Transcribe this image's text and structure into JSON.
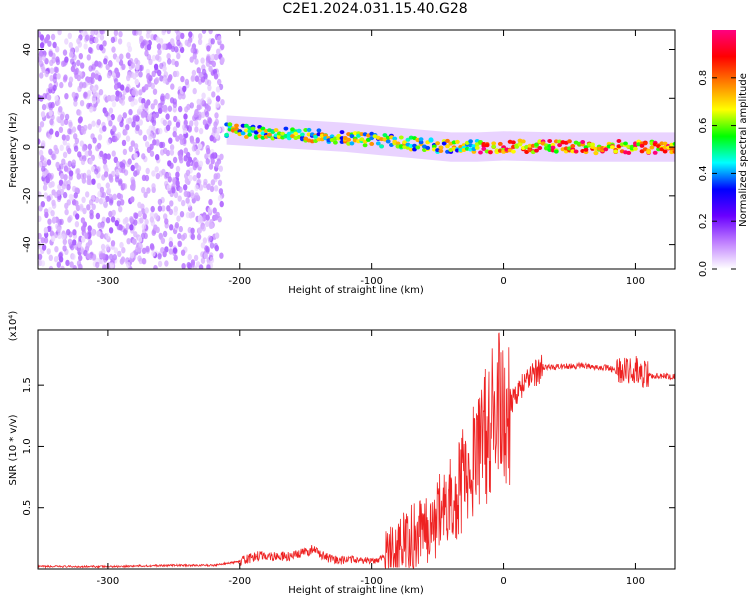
{
  "title": "C2E1.2024.031.15.40.G28",
  "chart_data": [
    {
      "type": "heatmap",
      "xlabel": "Height of straight line (km)",
      "ylabel": "Frequency (Hz)",
      "xlim": [
        -353,
        130
      ],
      "ylim": [
        -50,
        48
      ],
      "x_ticks": [
        -300,
        -200,
        -100,
        0,
        100
      ],
      "x_tick_labels": [
        "-300",
        "-200",
        "-100",
        "0",
        "100"
      ],
      "y_ticks": [
        -40,
        -20,
        0,
        20,
        40
      ],
      "y_tick_labels": [
        "-40",
        "-20",
        "0",
        "20",
        "40"
      ],
      "colorbar": {
        "label": "Normalized spectral amplitude",
        "range": [
          0,
          1
        ],
        "ticks": [
          0.0,
          0.2,
          0.4,
          0.6,
          0.8
        ],
        "tick_labels": [
          "0.0",
          "0.2",
          "0.4",
          "0.6",
          "0.8"
        ],
        "colors": [
          "#ffffff",
          "#c080ff",
          "#6a00ff",
          "#0000ff",
          "#00ffff",
          "#00ff00",
          "#ffff00",
          "#ff8000",
          "#ff0000",
          "#ff0080"
        ]
      },
      "noise_region": {
        "x_range": [
          -353,
          -213
        ],
        "freq_range": [
          -50,
          48
        ],
        "typical_amplitude": 0.1
      },
      "ridge_center": [
        {
          "x": -210,
          "freq": 7
        },
        {
          "x": -180,
          "freq": 6
        },
        {
          "x": -150,
          "freq": 5
        },
        {
          "x": -120,
          "freq": 4
        },
        {
          "x": -100,
          "freq": 3
        },
        {
          "x": -80,
          "freq": 2
        },
        {
          "x": -60,
          "freq": 1
        },
        {
          "x": -40,
          "freq": 0
        },
        {
          "x": -20,
          "freq": 0
        },
        {
          "x": 0,
          "freq": 0.5
        },
        {
          "x": 40,
          "freq": 0
        },
        {
          "x": 80,
          "freq": 0
        },
        {
          "x": 130,
          "freq": 0
        }
      ],
      "grid": false
    },
    {
      "type": "line",
      "xlabel": "Height of straight line (km)",
      "ylabel": "SNR (10 * v/v)",
      "y_scale_label": "(x10⁴)",
      "xlim": [
        -353,
        130
      ],
      "ylim": [
        0,
        1.95
      ],
      "x_ticks": [
        -300,
        -200,
        -100,
        0,
        100
      ],
      "x_tick_labels": [
        "-300",
        "-200",
        "-100",
        "0",
        "100"
      ],
      "y_ticks": [
        0.5,
        1.0,
        1.5
      ],
      "y_tick_labels": [
        "0.5",
        "1.0",
        "1.5"
      ],
      "series": [
        {
          "color": "#ee2222",
          "points": [
            [
              -353,
              0.02
            ],
            [
              -300,
              0.02
            ],
            [
              -250,
              0.03
            ],
            [
              -220,
              0.03
            ],
            [
              -200,
              0.06
            ],
            [
              -185,
              0.11
            ],
            [
              -160,
              0.1
            ],
            [
              -145,
              0.16
            ],
            [
              -130,
              0.07
            ],
            [
              -110,
              0.08
            ],
            [
              -100,
              0.06
            ],
            [
              -90,
              0.1
            ],
            [
              -80,
              0.15
            ],
            [
              -70,
              0.25
            ],
            [
              -60,
              0.35
            ],
            [
              -50,
              0.42
            ],
            [
              -40,
              0.55
            ],
            [
              -30,
              0.75
            ],
            [
              -20,
              0.95
            ],
            [
              -10,
              1.15
            ],
            [
              -5,
              1.3
            ],
            [
              0,
              1.28
            ],
            [
              10,
              1.45
            ],
            [
              20,
              1.58
            ],
            [
              30,
              1.64
            ],
            [
              40,
              1.65
            ],
            [
              60,
              1.66
            ],
            [
              80,
              1.64
            ],
            [
              90,
              1.6
            ],
            [
              100,
              1.62
            ],
            [
              110,
              1.58
            ],
            [
              130,
              1.57
            ]
          ]
        }
      ]
    }
  ]
}
